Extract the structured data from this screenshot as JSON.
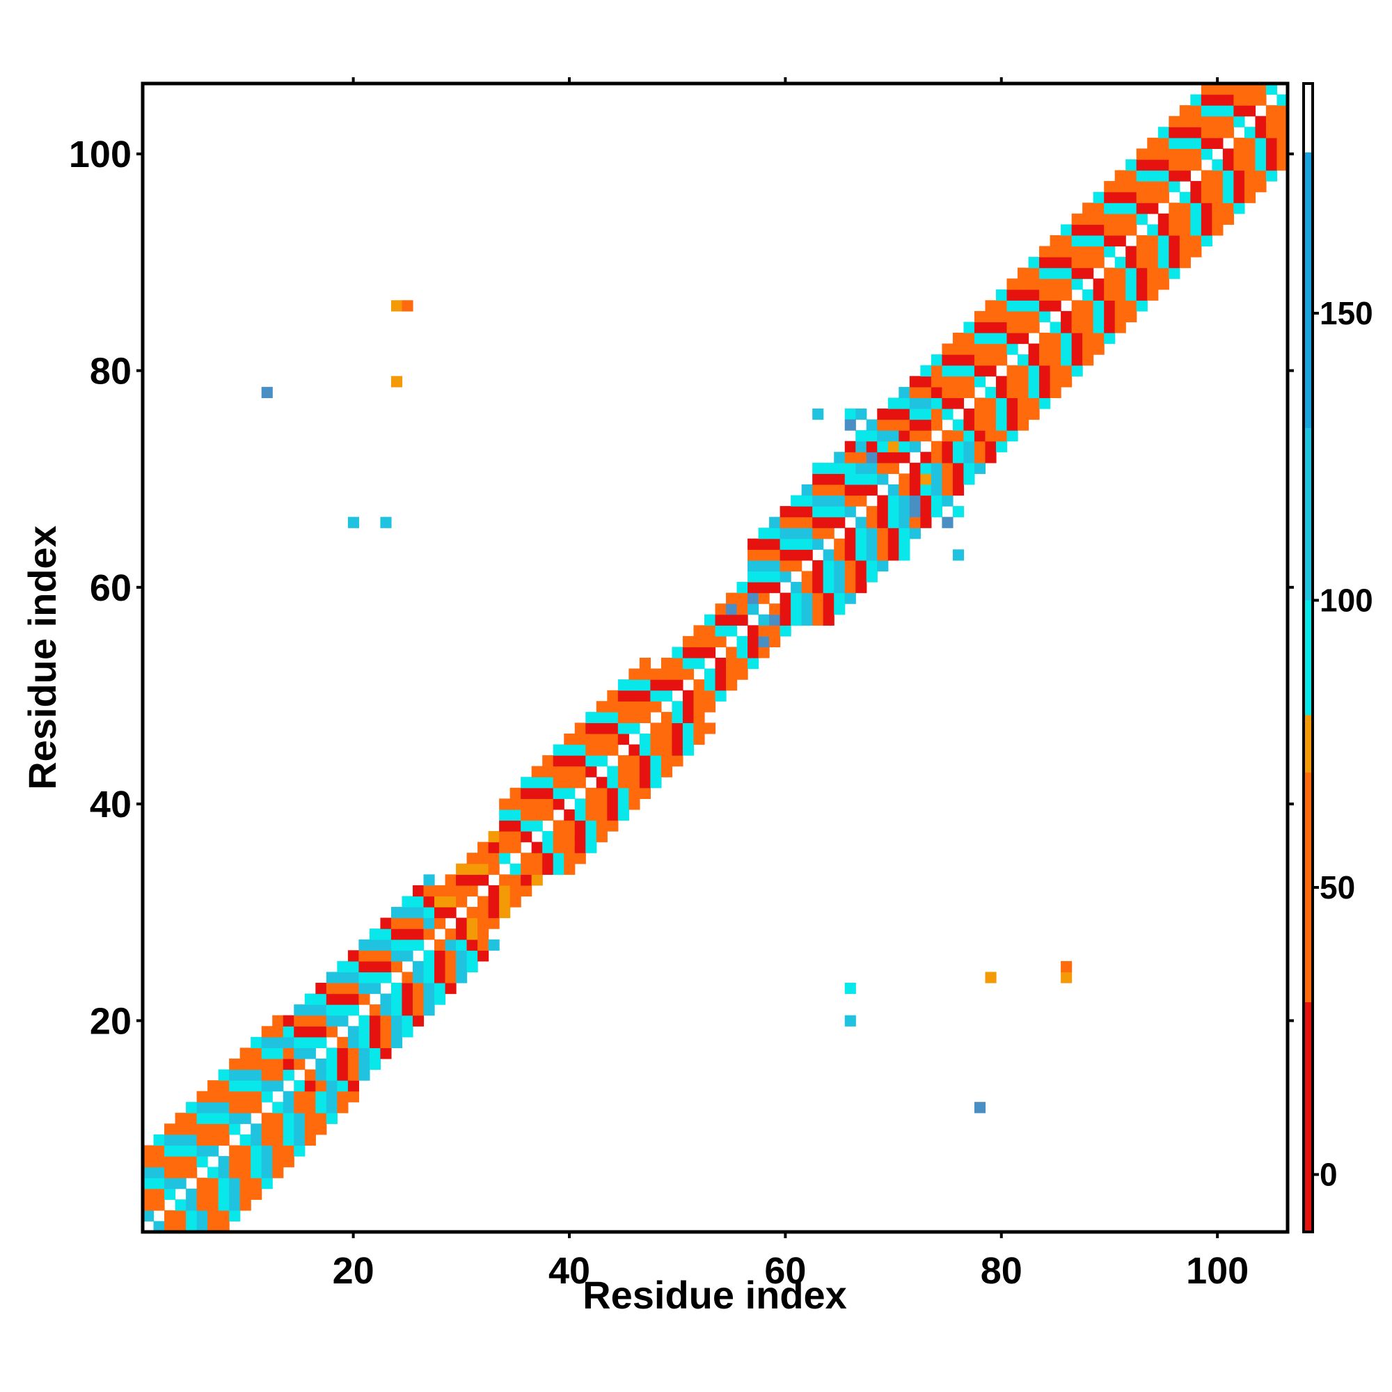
{
  "chart_data": {
    "type": "heatmap",
    "title": "",
    "xlabel": "Residue index",
    "ylabel": "Residue index",
    "xlim": [
      1,
      106
    ],
    "ylim": [
      1,
      106
    ],
    "xticks": [
      20,
      40,
      60,
      80,
      100
    ],
    "yticks": [
      20,
      40,
      60,
      80,
      100
    ],
    "grid": false,
    "legend": "none",
    "colorbar": {
      "min": -10,
      "max": 190,
      "ticks": [
        0,
        50,
        100,
        150
      ],
      "segments": [
        {
          "from": -10,
          "to": 30,
          "color": "#e5120f"
        },
        {
          "from": 30,
          "to": 70,
          "color": "#ff6a0d"
        },
        {
          "from": 70,
          "to": 80,
          "color": "#f59a07"
        },
        {
          "from": 80,
          "to": 100,
          "color": "#08e7ea"
        },
        {
          "from": 100,
          "to": 130,
          "color": "#1fc3e0"
        },
        {
          "from": 130,
          "to": 178,
          "color": "#1aa3dd"
        },
        {
          "from": 178,
          "to": 190,
          "color": "#ffffff"
        }
      ]
    },
    "palette": {
      "R": "#e5120f",
      "O": "#ff6a0d",
      "A": "#f59a07",
      "C": "#08e7ea",
      "T": "#1fc3e0",
      "B": "#4a8fc4"
    },
    "band_segments": [
      {
        "from": 1,
        "to": 13,
        "width": 7,
        "pattern": "OCTO"
      },
      {
        "from": 14,
        "to": 27,
        "width": 6,
        "pattern": "ROTC"
      },
      {
        "from": 28,
        "to": 33,
        "width": 4,
        "pattern": "AOOR"
      },
      {
        "from": 34,
        "to": 47,
        "width": 6,
        "pattern": "ORCO"
      },
      {
        "from": 48,
        "to": 56,
        "width": 4,
        "pattern": "OOCR"
      },
      {
        "from": 57,
        "to": 73,
        "width": 7,
        "pattern": "CTOR"
      },
      {
        "from": 74,
        "to": 106,
        "width": 7,
        "pattern": "OCRO"
      }
    ],
    "cells": [
      {
        "x": 12,
        "y": 78,
        "c": "B"
      },
      {
        "x": 78,
        "y": 12,
        "c": "B"
      },
      {
        "x": 24,
        "y": 86,
        "c": "A"
      },
      {
        "x": 25,
        "y": 86,
        "c": "O"
      },
      {
        "x": 24,
        "y": 79,
        "c": "A"
      },
      {
        "x": 86,
        "y": 24,
        "c": "A"
      },
      {
        "x": 86,
        "y": 25,
        "c": "O"
      },
      {
        "x": 79,
        "y": 24,
        "c": "A"
      },
      {
        "x": 20,
        "y": 66,
        "c": "T"
      },
      {
        "x": 23,
        "y": 66,
        "c": "T"
      },
      {
        "x": 66,
        "y": 20,
        "c": "T"
      },
      {
        "x": 66,
        "y": 23,
        "c": "C"
      },
      {
        "x": 63,
        "y": 76,
        "c": "T"
      },
      {
        "x": 66,
        "y": 76,
        "c": "C"
      },
      {
        "x": 67,
        "y": 76,
        "c": "T"
      },
      {
        "x": 66,
        "y": 75,
        "c": "B"
      },
      {
        "x": 63,
        "y": 71,
        "c": "C"
      },
      {
        "x": 66,
        "y": 71,
        "c": "C"
      },
      {
        "x": 76,
        "y": 63,
        "c": "T"
      },
      {
        "x": 76,
        "y": 67,
        "c": "C"
      },
      {
        "x": 75,
        "y": 66,
        "c": "B"
      },
      {
        "x": 71,
        "y": 63,
        "c": "C"
      },
      {
        "x": 71,
        "y": 72,
        "c": "R"
      },
      {
        "x": 72,
        "y": 71,
        "c": "R"
      },
      {
        "x": 72,
        "y": 70,
        "c": "R"
      },
      {
        "x": 70,
        "y": 72,
        "c": "R"
      },
      {
        "x": 73,
        "y": 72,
        "c": "R"
      },
      {
        "x": 71,
        "y": 74,
        "c": "R"
      },
      {
        "x": 70,
        "y": 73,
        "c": "A"
      },
      {
        "x": 73,
        "y": 70,
        "c": "A"
      },
      {
        "x": 68,
        "y": 72,
        "c": "B"
      },
      {
        "x": 72,
        "y": 68,
        "c": "B"
      },
      {
        "x": 72,
        "y": 67,
        "c": "B"
      },
      {
        "x": 67,
        "y": 73,
        "c": "T"
      },
      {
        "x": 57,
        "y": 59,
        "c": "B"
      },
      {
        "x": 59,
        "y": 57,
        "c": "B"
      },
      {
        "x": 58,
        "y": 55,
        "c": "B"
      },
      {
        "x": 55,
        "y": 58,
        "c": "B"
      }
    ]
  }
}
